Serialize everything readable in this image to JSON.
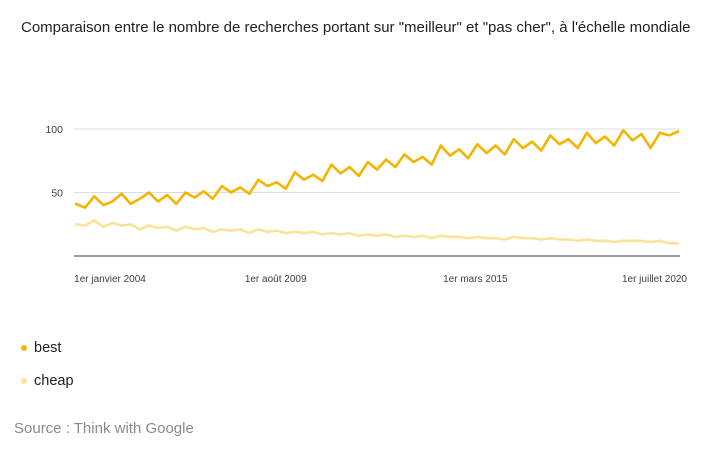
{
  "title": "Comparaison entre le nombre de recherches portant sur \"meilleur\" et \"pas cher\", à l'échelle mondiale",
  "source": "Source : Think with Google",
  "colors": {
    "best": "#F4B400",
    "cheap": "#FBE29A",
    "grid": "#dadce0",
    "axis": "#5f6368"
  },
  "chart_data": {
    "type": "line",
    "ylim": [
      0,
      100
    ],
    "yticks": [
      "50",
      "100"
    ],
    "xlim": [
      "2004-01",
      "2020-11"
    ],
    "xticks": [
      {
        "label": "1er janvier 2004",
        "date": "2004-01"
      },
      {
        "label": "1er août 2009",
        "date": "2009-08"
      },
      {
        "label": "1er mars 2015",
        "date": "2015-03"
      },
      {
        "label": "1er juillet 2020",
        "date": "2020-07"
      }
    ],
    "x_step": "quarterly",
    "series": [
      {
        "name": "best",
        "values": [
          41,
          38,
          47,
          40,
          43,
          49,
          41,
          45,
          50,
          43,
          48,
          41,
          50,
          46,
          51,
          45,
          55,
          50,
          54,
          49,
          60,
          55,
          58,
          53,
          66,
          60,
          64,
          59,
          72,
          65,
          70,
          63,
          74,
          68,
          76,
          70,
          80,
          74,
          78,
          72,
          87,
          79,
          84,
          77,
          88,
          81,
          87,
          80,
          92,
          85,
          90,
          83,
          95,
          88,
          92,
          85,
          97,
          89,
          94,
          87,
          99,
          91,
          96,
          85,
          97,
          95,
          98
        ]
      },
      {
        "name": "cheap",
        "values": [
          25,
          24,
          28,
          23,
          26,
          24,
          25,
          21,
          24,
          22,
          23,
          20,
          23,
          21,
          22,
          19,
          21,
          20,
          21,
          18,
          21,
          19,
          20,
          18,
          19,
          18,
          19,
          17,
          18,
          17,
          18,
          16,
          17,
          16,
          17,
          15,
          16,
          15,
          16,
          14,
          16,
          15,
          15,
          14,
          15,
          14,
          14,
          13,
          15,
          14,
          14,
          13,
          14,
          13,
          13,
          12,
          13,
          12,
          12,
          11,
          12,
          12,
          12,
          11,
          12,
          10,
          10
        ]
      }
    ]
  }
}
